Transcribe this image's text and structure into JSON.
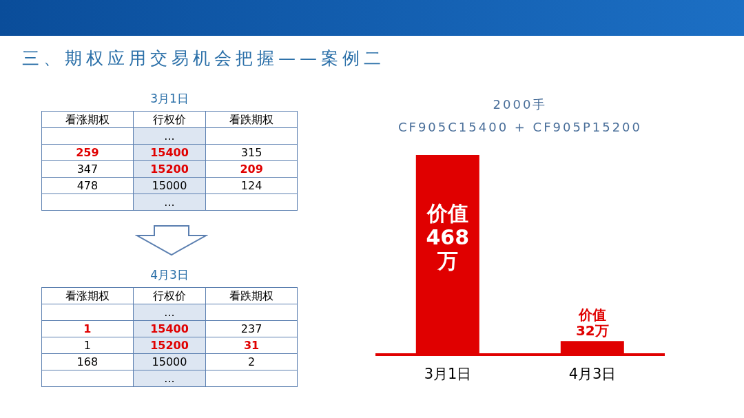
{
  "chart_data": [
    {
      "type": "other",
      "title": "三、期权应用交易机会把握——案例二"
    },
    {
      "type": "other",
      "title": "3月1日",
      "annotations": [
        "看涨期权",
        "行权价",
        "看跌期权",
        null,
        "...",
        null,
        "259",
        "15400",
        "315",
        "347",
        "15200",
        "209",
        "478",
        "15000",
        "124",
        null,
        "...",
        null
      ],
      "colors": [
        "#000000",
        "#000000",
        "#000000",
        null,
        "#000000",
        null,
        "#e00000",
        "#e00000",
        "#000000",
        "#000000",
        "#e00000",
        "#e00000",
        "#000000",
        "#000000",
        "#000000",
        null,
        "#000000",
        null
      ]
    },
    {
      "type": "other",
      "title": "4月3日",
      "annotations": [
        "看涨期权",
        "行权价",
        "看跌期权",
        null,
        "...",
        null,
        "1",
        "15400",
        "237",
        "1",
        "15200",
        "31",
        "168",
        "15000",
        "2",
        null,
        "...",
        null
      ],
      "colors": [
        "#000000",
        "#000000",
        "#000000",
        null,
        "#000000",
        null,
        "#e00000",
        "#e00000",
        "#000000",
        "#000000",
        "#e00000",
        "#e00000",
        "#000000",
        "#000000",
        "#000000",
        null,
        "#000000",
        null
      ]
    },
    {
      "type": "bar",
      "title": "2000手",
      "subtitle": "CF905C15400 + CF905P15200",
      "categories": [
        "3月1日",
        "4月3日"
      ],
      "values": [
        468,
        32
      ],
      "color": "#e00000",
      "value_labels": [
        "价值468万",
        "价值32万"
      ]
    }
  ]
}
